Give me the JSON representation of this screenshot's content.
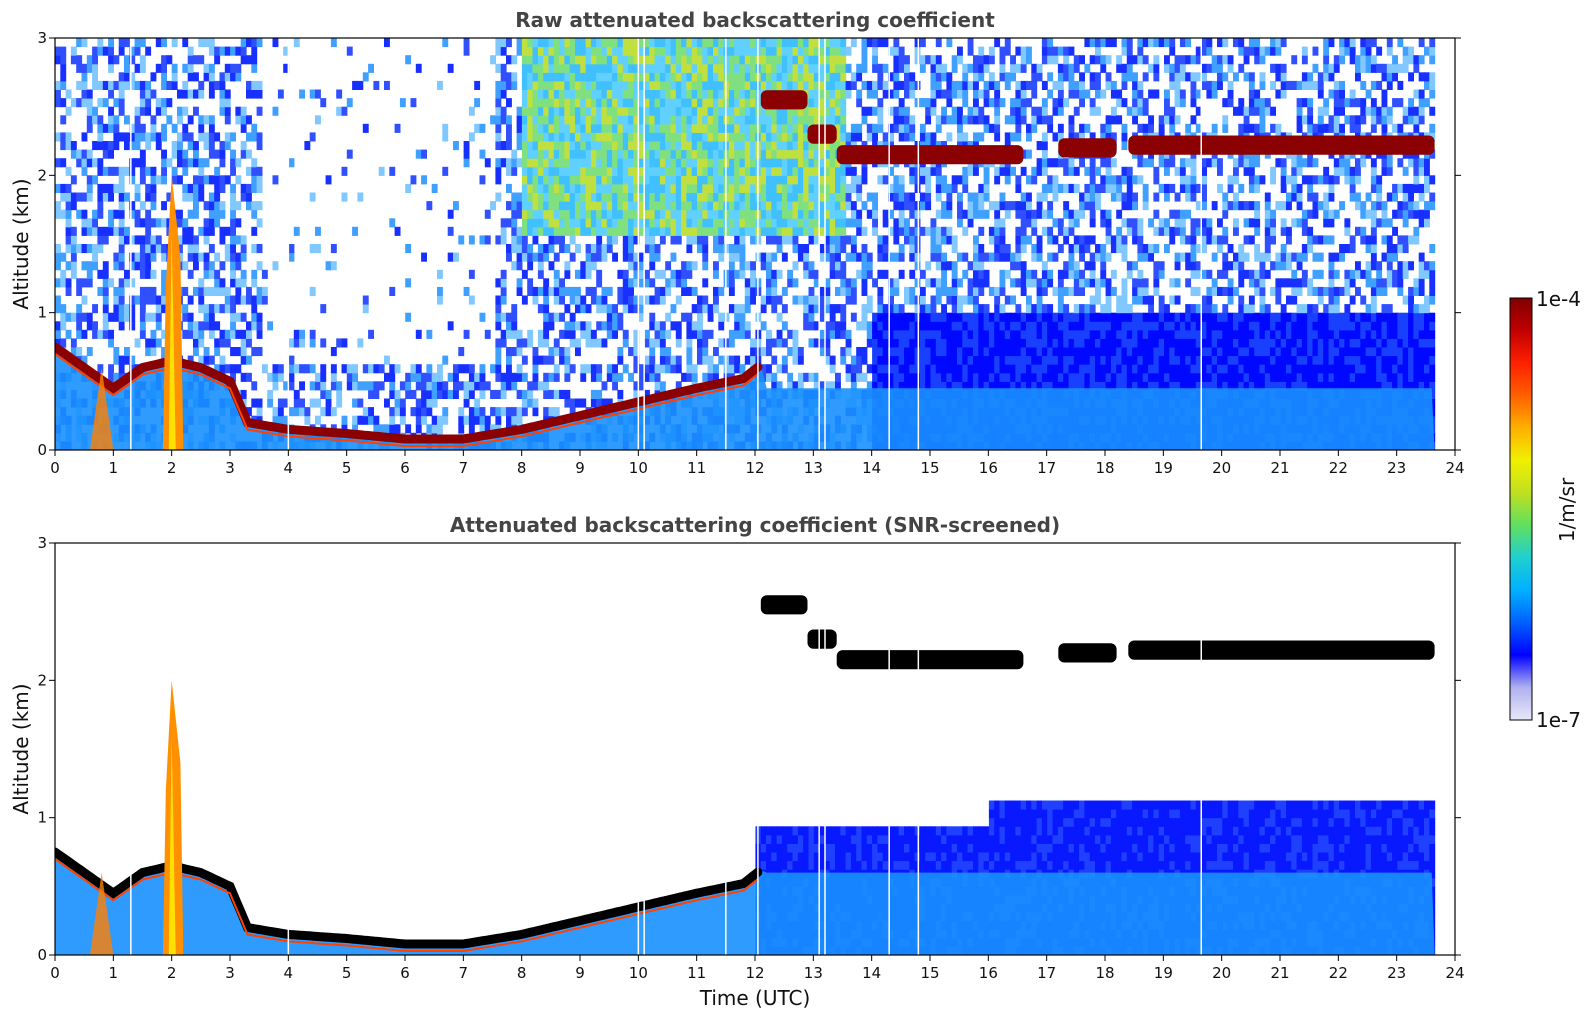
{
  "chart_data": [
    {
      "type": "heatmap",
      "title": "Raw attenuated backscattering coefficient",
      "xlabel": "",
      "ylabel": "Altitude (km)",
      "xlim": [
        0,
        24
      ],
      "ylim": [
        0,
        3
      ],
      "xticks": [
        0,
        1,
        2,
        3,
        4,
        5,
        6,
        7,
        8,
        9,
        10,
        11,
        12,
        13,
        14,
        15,
        16,
        17,
        18,
        19,
        20,
        21,
        22,
        23,
        24
      ],
      "yticks": [
        0,
        1,
        2,
        3
      ],
      "data_end_time": 23.65,
      "features": {
        "boundary_layer_top_km": [
          {
            "t": 0.0,
            "z": 0.75
          },
          {
            "t": 0.5,
            "z": 0.6
          },
          {
            "t": 1.0,
            "z": 0.45
          },
          {
            "t": 1.5,
            "z": 0.6
          },
          {
            "t": 2.0,
            "z": 0.65
          },
          {
            "t": 2.5,
            "z": 0.6
          },
          {
            "t": 3.0,
            "z": 0.5
          },
          {
            "t": 3.3,
            "z": 0.2
          },
          {
            "t": 4.0,
            "z": 0.15
          },
          {
            "t": 5.0,
            "z": 0.12
          },
          {
            "t": 6.0,
            "z": 0.08
          },
          {
            "t": 7.0,
            "z": 0.08
          },
          {
            "t": 8.0,
            "z": 0.15
          },
          {
            "t": 9.0,
            "z": 0.25
          },
          {
            "t": 10.0,
            "z": 0.35
          },
          {
            "t": 11.0,
            "z": 0.45
          },
          {
            "t": 11.8,
            "z": 0.52
          },
          {
            "t": 12.1,
            "z": 0.62
          }
        ],
        "cloud_layers_km": [
          {
            "t_start": 12.1,
            "t_end": 12.9,
            "z": 2.55
          },
          {
            "t_start": 12.9,
            "t_end": 13.4,
            "z": 2.3
          },
          {
            "t_start": 13.4,
            "t_end": 16.6,
            "z": 2.15
          },
          {
            "t_start": 17.2,
            "t_end": 18.2,
            "z": 2.2
          },
          {
            "t_start": 18.4,
            "t_end": 23.65,
            "z": 2.22
          }
        ],
        "rising_plume": {
          "t": 2.0,
          "z_top": 2.0
        }
      }
    },
    {
      "type": "heatmap",
      "title": "Attenuated backscattering coefficient (SNR-screened)",
      "xlabel": "Time (UTC)",
      "ylabel": "Altitude (km)",
      "xlim": [
        0,
        24
      ],
      "ylim": [
        0,
        3
      ],
      "xticks": [
        0,
        1,
        2,
        3,
        4,
        5,
        6,
        7,
        8,
        9,
        10,
        11,
        12,
        13,
        14,
        15,
        16,
        17,
        18,
        19,
        20,
        21,
        22,
        23,
        24
      ],
      "yticks": [
        0,
        1,
        2,
        3
      ],
      "data_end_time": 23.65
    }
  ],
  "colorbar": {
    "max_label": "1e-4",
    "min_label": "1e-7",
    "unit_label": "1/m/sr",
    "colors": [
      "#e8e8f8",
      "#b0b0f0",
      "#0000ff",
      "#0060ff",
      "#00b0ff",
      "#20d0d0",
      "#60e060",
      "#c0e020",
      "#f0f000",
      "#ffb000",
      "#ff6000",
      "#ff2000",
      "#c00000",
      "#800000"
    ]
  }
}
